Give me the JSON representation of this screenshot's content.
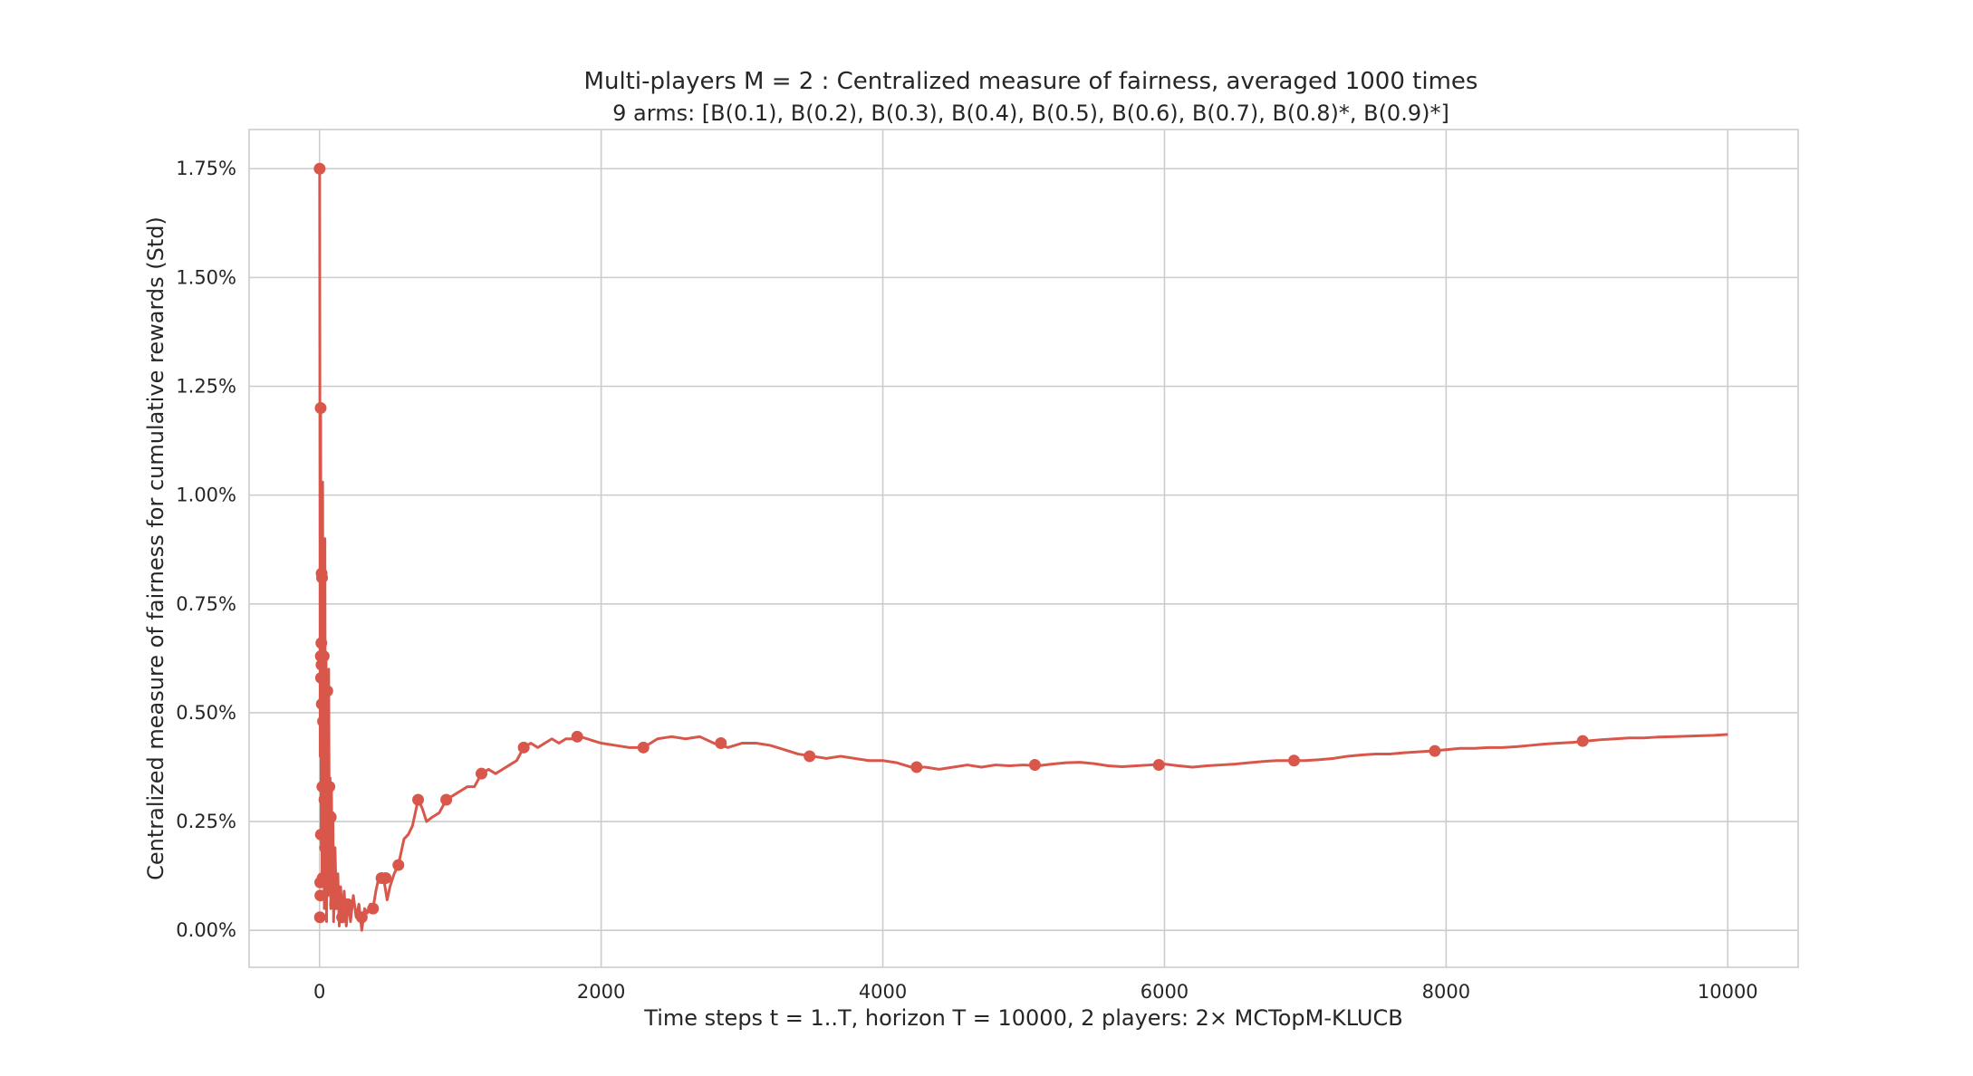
{
  "chart_data": {
    "type": "line",
    "title": "Multi-players M = 2 : Centralized measure of fairness, averaged 1000 times",
    "subtitle": "9 arms: [B(0.1), B(0.2), B(0.3), B(0.4), B(0.5), B(0.6), B(0.7), B(0.8)*, B(0.9)*]",
    "xlabel": "Time steps t = 1..T, horizon T = 10000, 2 players: 2× MCTopM-KLUCB",
    "ylabel": "Centralized measure of fairness for cumulative rewards (Std)",
    "xlim": [
      -500,
      10500
    ],
    "ylim": [
      -0.085,
      1.84
    ],
    "x_ticks": [
      0,
      2000,
      4000,
      6000,
      8000,
      10000
    ],
    "x_tick_labels": [
      "0",
      "2000",
      "4000",
      "6000",
      "8000",
      "10000"
    ],
    "y_ticks": [
      0.0,
      0.25,
      0.5,
      0.75,
      1.0,
      1.25,
      1.5,
      1.75
    ],
    "y_tick_labels": [
      "0.00%",
      "0.25%",
      "0.50%",
      "0.75%",
      "1.00%",
      "1.25%",
      "1.50%",
      "1.75%"
    ],
    "grid": true,
    "color": "#d9574a",
    "series": [
      {
        "name": "",
        "line": [
          [
            1,
            1.75
          ],
          [
            5,
            0.4
          ],
          [
            8,
            1.2
          ],
          [
            12,
            0.2
          ],
          [
            15,
            0.82
          ],
          [
            18,
            0.1
          ],
          [
            22,
            1.03
          ],
          [
            26,
            0.12
          ],
          [
            30,
            0.66
          ],
          [
            34,
            0.05
          ],
          [
            38,
            0.9
          ],
          [
            42,
            0.2
          ],
          [
            46,
            0.63
          ],
          [
            50,
            0.02
          ],
          [
            55,
            0.55
          ],
          [
            60,
            0.08
          ],
          [
            65,
            0.6
          ],
          [
            70,
            0.12
          ],
          [
            75,
            0.35
          ],
          [
            80,
            0.05
          ],
          [
            85,
            0.32
          ],
          [
            90,
            0.1
          ],
          [
            95,
            0.27
          ],
          [
            100,
            0.02
          ],
          [
            110,
            0.19
          ],
          [
            120,
            0.05
          ],
          [
            130,
            0.13
          ],
          [
            140,
            0.01
          ],
          [
            150,
            0.1
          ],
          [
            160,
            0.03
          ],
          [
            175,
            0.09
          ],
          [
            190,
            0.01
          ],
          [
            205,
            0.07
          ],
          [
            220,
            0.02
          ],
          [
            240,
            0.08
          ],
          [
            260,
            0.03
          ],
          [
            280,
            0.06
          ],
          [
            300,
            0.0
          ],
          [
            320,
            0.05
          ],
          [
            340,
            0.04
          ],
          [
            360,
            0.06
          ],
          [
            380,
            0.05
          ],
          [
            400,
            0.09
          ],
          [
            420,
            0.12
          ],
          [
            440,
            0.13
          ],
          [
            460,
            0.11
          ],
          [
            480,
            0.07
          ],
          [
            500,
            0.1
          ],
          [
            530,
            0.13
          ],
          [
            560,
            0.15
          ],
          [
            600,
            0.21
          ],
          [
            630,
            0.22
          ],
          [
            660,
            0.24
          ],
          [
            700,
            0.3
          ],
          [
            730,
            0.28
          ],
          [
            760,
            0.25
          ],
          [
            800,
            0.26
          ],
          [
            850,
            0.27
          ],
          [
            900,
            0.3
          ],
          [
            950,
            0.31
          ],
          [
            1000,
            0.32
          ],
          [
            1050,
            0.33
          ],
          [
            1100,
            0.33
          ],
          [
            1150,
            0.36
          ],
          [
            1200,
            0.37
          ],
          [
            1250,
            0.36
          ],
          [
            1300,
            0.37
          ],
          [
            1350,
            0.38
          ],
          [
            1400,
            0.39
          ],
          [
            1450,
            0.42
          ],
          [
            1500,
            0.43
          ],
          [
            1550,
            0.42
          ],
          [
            1600,
            0.43
          ],
          [
            1650,
            0.44
          ],
          [
            1700,
            0.43
          ],
          [
            1750,
            0.44
          ],
          [
            1800,
            0.44
          ],
          [
            1850,
            0.445
          ],
          [
            1900,
            0.44
          ],
          [
            1950,
            0.435
          ],
          [
            2000,
            0.43
          ],
          [
            2100,
            0.425
          ],
          [
            2200,
            0.42
          ],
          [
            2300,
            0.42
          ],
          [
            2400,
            0.44
          ],
          [
            2500,
            0.445
          ],
          [
            2600,
            0.44
          ],
          [
            2700,
            0.445
          ],
          [
            2800,
            0.43
          ],
          [
            2900,
            0.42
          ],
          [
            3000,
            0.43
          ],
          [
            3100,
            0.43
          ],
          [
            3200,
            0.425
          ],
          [
            3300,
            0.415
          ],
          [
            3400,
            0.405
          ],
          [
            3500,
            0.4
          ],
          [
            3600,
            0.395
          ],
          [
            3700,
            0.4
          ],
          [
            3800,
            0.395
          ],
          [
            3900,
            0.39
          ],
          [
            4000,
            0.39
          ],
          [
            4100,
            0.385
          ],
          [
            4200,
            0.375
          ],
          [
            4300,
            0.375
          ],
          [
            4400,
            0.37
          ],
          [
            4500,
            0.375
          ],
          [
            4600,
            0.38
          ],
          [
            4700,
            0.375
          ],
          [
            4800,
            0.38
          ],
          [
            4900,
            0.378
          ],
          [
            5000,
            0.38
          ],
          [
            5100,
            0.378
          ],
          [
            5200,
            0.382
          ],
          [
            5300,
            0.385
          ],
          [
            5400,
            0.386
          ],
          [
            5500,
            0.383
          ],
          [
            5600,
            0.378
          ],
          [
            5700,
            0.376
          ],
          [
            5800,
            0.378
          ],
          [
            5900,
            0.38
          ],
          [
            6000,
            0.382
          ],
          [
            6100,
            0.378
          ],
          [
            6200,
            0.375
          ],
          [
            6300,
            0.378
          ],
          [
            6400,
            0.38
          ],
          [
            6500,
            0.382
          ],
          [
            6600,
            0.385
          ],
          [
            6700,
            0.388
          ],
          [
            6800,
            0.39
          ],
          [
            6900,
            0.39
          ],
          [
            7000,
            0.39
          ],
          [
            7100,
            0.392
          ],
          [
            7200,
            0.395
          ],
          [
            7300,
            0.4
          ],
          [
            7400,
            0.403
          ],
          [
            7500,
            0.405
          ],
          [
            7600,
            0.405
          ],
          [
            7700,
            0.408
          ],
          [
            7800,
            0.41
          ],
          [
            7900,
            0.412
          ],
          [
            8000,
            0.415
          ],
          [
            8100,
            0.418
          ],
          [
            8200,
            0.418
          ],
          [
            8300,
            0.42
          ],
          [
            8400,
            0.42
          ],
          [
            8500,
            0.422
          ],
          [
            8600,
            0.425
          ],
          [
            8700,
            0.428
          ],
          [
            8800,
            0.43
          ],
          [
            8900,
            0.432
          ],
          [
            9000,
            0.435
          ],
          [
            9100,
            0.438
          ],
          [
            9200,
            0.44
          ],
          [
            9300,
            0.442
          ],
          [
            9400,
            0.442
          ],
          [
            9500,
            0.444
          ],
          [
            9600,
            0.445
          ],
          [
            9700,
            0.446
          ],
          [
            9800,
            0.447
          ],
          [
            9900,
            0.448
          ],
          [
            10000,
            0.45
          ]
        ],
        "markers": [
          [
            1,
            1.75
          ],
          [
            3,
            0.03
          ],
          [
            5,
            0.11
          ],
          [
            6,
            0.08
          ],
          [
            8,
            1.2
          ],
          [
            9,
            0.63
          ],
          [
            10,
            0.22
          ],
          [
            11,
            0.58
          ],
          [
            13,
            0.66
          ],
          [
            14,
            0.61
          ],
          [
            15,
            0.82
          ],
          [
            16,
            0.52
          ],
          [
            18,
            0.81
          ],
          [
            20,
            0.33
          ],
          [
            22,
            0.12
          ],
          [
            25,
            0.48
          ],
          [
            30,
            0.63
          ],
          [
            35,
            0.3
          ],
          [
            40,
            0.19
          ],
          [
            45,
            0.26
          ],
          [
            50,
            0.11
          ],
          [
            55,
            0.55
          ],
          [
            70,
            0.33
          ],
          [
            80,
            0.26
          ],
          [
            90,
            0.1
          ],
          [
            110,
            0.06
          ],
          [
            160,
            0.03
          ],
          [
            200,
            0.06
          ],
          [
            300,
            0.03
          ],
          [
            380,
            0.05
          ],
          [
            440,
            0.12
          ],
          [
            470,
            0.12
          ],
          [
            560,
            0.15
          ],
          [
            700,
            0.3
          ],
          [
            900,
            0.3
          ],
          [
            1150,
            0.36
          ],
          [
            1450,
            0.42
          ],
          [
            1830,
            0.445
          ],
          [
            2300,
            0.42
          ],
          [
            2850,
            0.43
          ],
          [
            3480,
            0.4
          ],
          [
            4240,
            0.375
          ],
          [
            5080,
            0.38
          ],
          [
            5960,
            0.38
          ],
          [
            6920,
            0.39
          ],
          [
            7920,
            0.412
          ],
          [
            8970,
            0.435
          ]
        ]
      }
    ]
  }
}
